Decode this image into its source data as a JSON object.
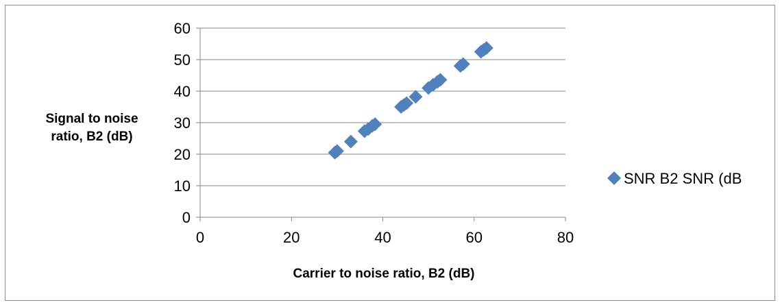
{
  "chart_data": {
    "type": "scatter",
    "title": "",
    "xlabel": "Carrier to noise ratio, B2 (dB)",
    "ylabel_lines": [
      "Signal to noise",
      "ratio, B2 (dB)"
    ],
    "xlim": [
      0,
      80
    ],
    "ylim": [
      0,
      60
    ],
    "x_ticks": [
      "0",
      "20",
      "40",
      "60",
      "80"
    ],
    "y_ticks": [
      "0",
      "10",
      "20",
      "30",
      "40",
      "50",
      "60"
    ],
    "grid": "horizontal",
    "legend_position": "right",
    "series": [
      {
        "name": "SNR B2 SNR (dB",
        "color": "#4f81bd",
        "marker": "diamond",
        "points": [
          {
            "x": 29.5,
            "y": 20.5
          },
          {
            "x": 30.0,
            "y": 21.0
          },
          {
            "x": 33.0,
            "y": 24.0
          },
          {
            "x": 36.0,
            "y": 27.3
          },
          {
            "x": 36.8,
            "y": 28.0
          },
          {
            "x": 37.7,
            "y": 29.0
          },
          {
            "x": 38.3,
            "y": 29.5
          },
          {
            "x": 44.0,
            "y": 35.0
          },
          {
            "x": 44.6,
            "y": 35.6
          },
          {
            "x": 45.2,
            "y": 36.2
          },
          {
            "x": 47.2,
            "y": 38.2
          },
          {
            "x": 50.0,
            "y": 41.0
          },
          {
            "x": 51.0,
            "y": 42.0
          },
          {
            "x": 52.0,
            "y": 43.0
          },
          {
            "x": 52.6,
            "y": 43.6
          },
          {
            "x": 57.0,
            "y": 48.0
          },
          {
            "x": 57.6,
            "y": 48.6
          },
          {
            "x": 61.5,
            "y": 52.5
          },
          {
            "x": 62.1,
            "y": 53.1
          },
          {
            "x": 62.7,
            "y": 53.7
          }
        ]
      }
    ]
  }
}
